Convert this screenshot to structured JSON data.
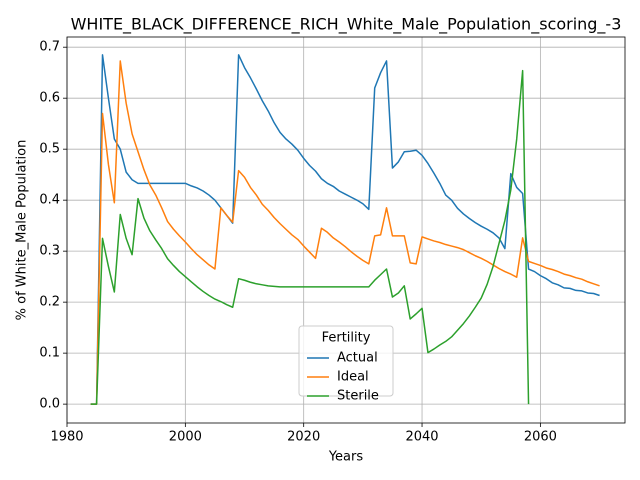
{
  "chart_data": {
    "type": "line",
    "title": "WHITE_BLACK_DIFFERENCE_RICH_White_Male_Population_scoring_-3",
    "x_label": "Years",
    "y_label": "% of White_Male Population",
    "x": [
      1984,
      1985,
      1986,
      1987,
      1988,
      1989,
      1990,
      1991,
      1992,
      1993,
      1994,
      1995,
      1996,
      1997,
      1998,
      1999,
      2000,
      2001,
      2002,
      2003,
      2004,
      2005,
      2006,
      2007,
      2008,
      2009,
      2010,
      2011,
      2012,
      2013,
      2014,
      2015,
      2016,
      2017,
      2018,
      2019,
      2020,
      2021,
      2022,
      2023,
      2024,
      2025,
      2026,
      2027,
      2028,
      2029,
      2030,
      2031,
      2032,
      2033,
      2034,
      2035,
      2036,
      2037,
      2038,
      2039,
      2040,
      2041,
      2042,
      2043,
      2044,
      2045,
      2046,
      2047,
      2048,
      2049,
      2050,
      2051,
      2052,
      2053,
      2054,
      2055,
      2056,
      2057,
      2058,
      2059,
      2060,
      2061,
      2062,
      2063,
      2064,
      2065,
      2066,
      2067,
      2068,
      2069,
      2070
    ],
    "series": [
      {
        "name": "Actual",
        "color": "#1f77b4",
        "values": [
          0,
          0,
          0.685,
          0.6,
          0.52,
          0.5,
          0.455,
          0.44,
          0.433,
          0.433,
          0.433,
          0.433,
          0.433,
          0.433,
          0.433,
          0.433,
          0.433,
          0.428,
          0.424,
          0.418,
          0.41,
          0.4,
          0.385,
          0.37,
          0.355,
          0.685,
          0.66,
          0.64,
          0.618,
          0.595,
          0.575,
          0.552,
          0.533,
          0.52,
          0.51,
          0.498,
          0.482,
          0.468,
          0.457,
          0.442,
          0.433,
          0.427,
          0.418,
          0.412,
          0.406,
          0.4,
          0.393,
          0.382,
          0.62,
          0.65,
          0.673,
          0.463,
          0.475,
          0.495,
          0.496,
          0.498,
          0.488,
          0.472,
          0.453,
          0.433,
          0.41,
          0.4,
          0.384,
          0.373,
          0.364,
          0.356,
          0.349,
          0.343,
          0.336,
          0.326,
          0.305,
          0.452,
          0.425,
          0.413,
          0.265,
          0.26,
          0.252,
          0.246,
          0.238,
          0.234,
          0.228,
          0.227,
          0.223,
          0.222,
          0.218,
          0.217,
          0.213
        ]
      },
      {
        "name": "Ideal",
        "color": "#ff7f0e",
        "values": [
          0,
          0,
          0.57,
          0.47,
          0.395,
          0.673,
          0.59,
          0.53,
          0.495,
          0.46,
          0.43,
          0.41,
          0.385,
          0.358,
          0.343,
          0.33,
          0.318,
          0.305,
          0.293,
          0.283,
          0.273,
          0.265,
          0.385,
          0.37,
          0.357,
          0.458,
          0.445,
          0.425,
          0.41,
          0.392,
          0.38,
          0.366,
          0.354,
          0.343,
          0.332,
          0.323,
          0.31,
          0.298,
          0.286,
          0.345,
          0.337,
          0.326,
          0.318,
          0.309,
          0.299,
          0.29,
          0.282,
          0.275,
          0.33,
          0.332,
          0.385,
          0.33,
          0.33,
          0.33,
          0.277,
          0.275,
          0.328,
          0.324,
          0.32,
          0.317,
          0.313,
          0.31,
          0.307,
          0.303,
          0.297,
          0.291,
          0.286,
          0.28,
          0.273,
          0.266,
          0.26,
          0.255,
          0.249,
          0.326,
          0.28,
          0.276,
          0.272,
          0.267,
          0.264,
          0.26,
          0.255,
          0.252,
          0.248,
          0.245,
          0.24,
          0.236,
          0.232
        ]
      },
      {
        "name": "Sterile",
        "color": "#2ca02c",
        "values": [
          0,
          0,
          0.325,
          0.27,
          0.22,
          0.372,
          0.325,
          0.293,
          0.403,
          0.365,
          0.34,
          0.322,
          0.305,
          0.285,
          0.272,
          0.26,
          0.25,
          0.24,
          0.23,
          0.221,
          0.213,
          0.206,
          0.201,
          0.195,
          0.19,
          0.246,
          0.243,
          0.239,
          0.236,
          0.234,
          0.232,
          0.231,
          0.23,
          0.23,
          0.23,
          0.23,
          0.23,
          0.23,
          0.23,
          0.23,
          0.23,
          0.23,
          0.23,
          0.23,
          0.23,
          0.23,
          0.23,
          0.23,
          0.243,
          0.254,
          0.265,
          0.21,
          0.218,
          0.232,
          0.167,
          0.177,
          0.188,
          0.101,
          0.108,
          0.116,
          0.123,
          0.132,
          0.145,
          0.158,
          0.173,
          0.19,
          0.208,
          0.235,
          0.27,
          0.315,
          0.36,
          0.42,
          0.52,
          0.654,
          0,
          null,
          null,
          null,
          null,
          null,
          null,
          null,
          null,
          null,
          null,
          null,
          null
        ]
      }
    ],
    "xlim": [
      1980,
      2074.3
    ],
    "ylim": [
      -0.037,
      0.72
    ],
    "xticks": [
      1980,
      2000,
      2020,
      2040,
      2060
    ],
    "yticks": [
      {
        "value": 0,
        "label": "0.0"
      },
      0.1,
      0.2,
      0.3,
      0.4,
      0.5,
      0.6,
      0.7
    ],
    "grid": true,
    "legend_title": "Fertility",
    "legend_position": "lower center"
  }
}
